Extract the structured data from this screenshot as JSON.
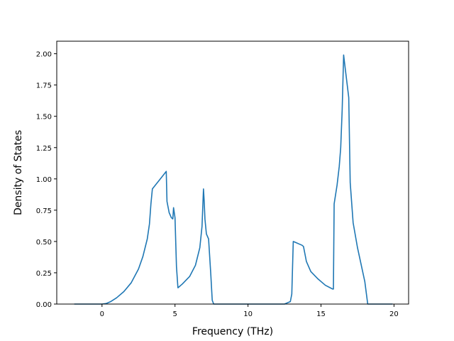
{
  "chart_data": {
    "type": "line",
    "title": "",
    "xlabel": "Frequency (THz)",
    "ylabel": "Density of States",
    "xlim": [
      -3.1,
      21.0
    ],
    "ylim": [
      0.0,
      2.1
    ],
    "xticks": [
      0,
      5,
      10,
      15,
      20
    ],
    "xtick_labels": [
      "0",
      "5",
      "10",
      "15",
      "20"
    ],
    "yticks": [
      0.0,
      0.25,
      0.5,
      0.75,
      1.0,
      1.25,
      1.5,
      1.75,
      2.0
    ],
    "ytick_labels": [
      "0.00",
      "0.25",
      "0.50",
      "0.75",
      "1.00",
      "1.25",
      "1.50",
      "1.75",
      "2.00"
    ],
    "grid": false,
    "line_color": "#1f77b4",
    "series": [
      {
        "x": [
          -1.9,
          -1.0,
          -0.5,
          0.0,
          0.3,
          0.6,
          1.0,
          1.5,
          2.0,
          2.5,
          2.8,
          3.1,
          3.25,
          3.35,
          3.45,
          4.2,
          4.4,
          4.45,
          4.6,
          4.75,
          4.85,
          4.9,
          5.0,
          5.1,
          5.2,
          5.5,
          6.0,
          6.4,
          6.7,
          6.85,
          6.95,
          7.0,
          7.05,
          7.15,
          7.3,
          7.45,
          7.55,
          7.65,
          8.0,
          10.0,
          12.5,
          12.9,
          13.0,
          13.1,
          13.3,
          13.5,
          13.7,
          13.8,
          13.9,
          14.0,
          14.3,
          14.8,
          15.3,
          15.8,
          15.85,
          15.9,
          16.1,
          16.25,
          16.35,
          16.45,
          16.55,
          16.6,
          16.9,
          17.0,
          17.2,
          17.5,
          18.0,
          18.2,
          18.5,
          19.0,
          19.9
        ],
        "y": [
          0.0,
          0.0,
          0.0,
          0.0,
          0.005,
          0.02,
          0.05,
          0.1,
          0.17,
          0.28,
          0.38,
          0.52,
          0.64,
          0.8,
          0.92,
          1.03,
          1.06,
          0.82,
          0.73,
          0.69,
          0.68,
          0.77,
          0.69,
          0.3,
          0.13,
          0.16,
          0.22,
          0.31,
          0.45,
          0.62,
          0.92,
          0.82,
          0.68,
          0.56,
          0.52,
          0.24,
          0.03,
          0.0,
          0.0,
          0.0,
          0.0,
          0.02,
          0.08,
          0.5,
          0.49,
          0.48,
          0.47,
          0.46,
          0.4,
          0.34,
          0.26,
          0.2,
          0.15,
          0.12,
          0.12,
          0.8,
          0.95,
          1.1,
          1.25,
          1.55,
          1.99,
          1.94,
          1.65,
          0.97,
          0.65,
          0.45,
          0.18,
          0.0,
          0.0,
          0.0,
          0.0
        ]
      }
    ]
  }
}
